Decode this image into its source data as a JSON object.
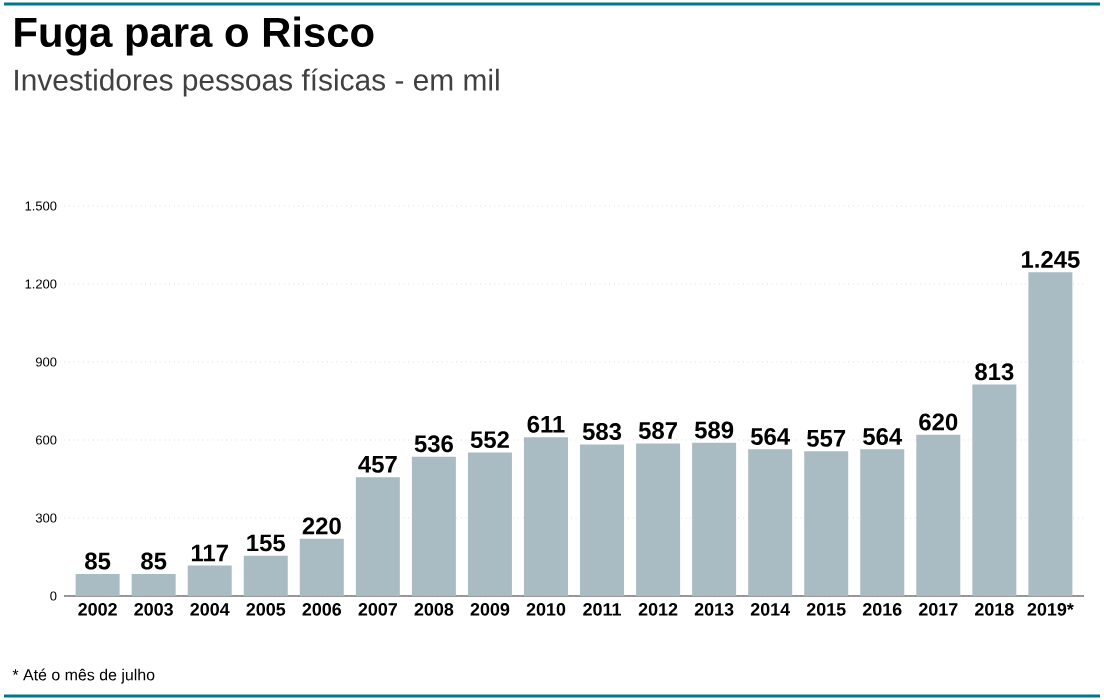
{
  "chart_data": {
    "type": "bar",
    "title": "Fuga para o Risco",
    "subtitle": "Investidores pessoas físicas - em mil",
    "categories": [
      "2002",
      "2003",
      "2004",
      "2005",
      "2006",
      "2007",
      "2008",
      "2009",
      "2010",
      "2011",
      "2012",
      "2013",
      "2014",
      "2015",
      "2016",
      "2017",
      "2018",
      "2019*"
    ],
    "values": [
      85,
      85,
      117,
      155,
      220,
      457,
      536,
      552,
      611,
      583,
      587,
      589,
      564,
      557,
      564,
      620,
      813,
      1245
    ],
    "value_labels": [
      "85",
      "85",
      "117",
      "155",
      "220",
      "457",
      "536",
      "552",
      "611",
      "583",
      "587",
      "589",
      "564",
      "557",
      "564",
      "620",
      "813",
      "1.245"
    ],
    "color": "#a9bcc3",
    "ylim": [
      0,
      1500
    ],
    "yticks": [
      0,
      300,
      600,
      900,
      {
        "value": 1200,
        "label": "1.200"
      },
      {
        "value": 1500,
        "label": "1.500"
      }
    ],
    "grid": "y",
    "annotations": [
      "* Até o mês de julho"
    ]
  }
}
